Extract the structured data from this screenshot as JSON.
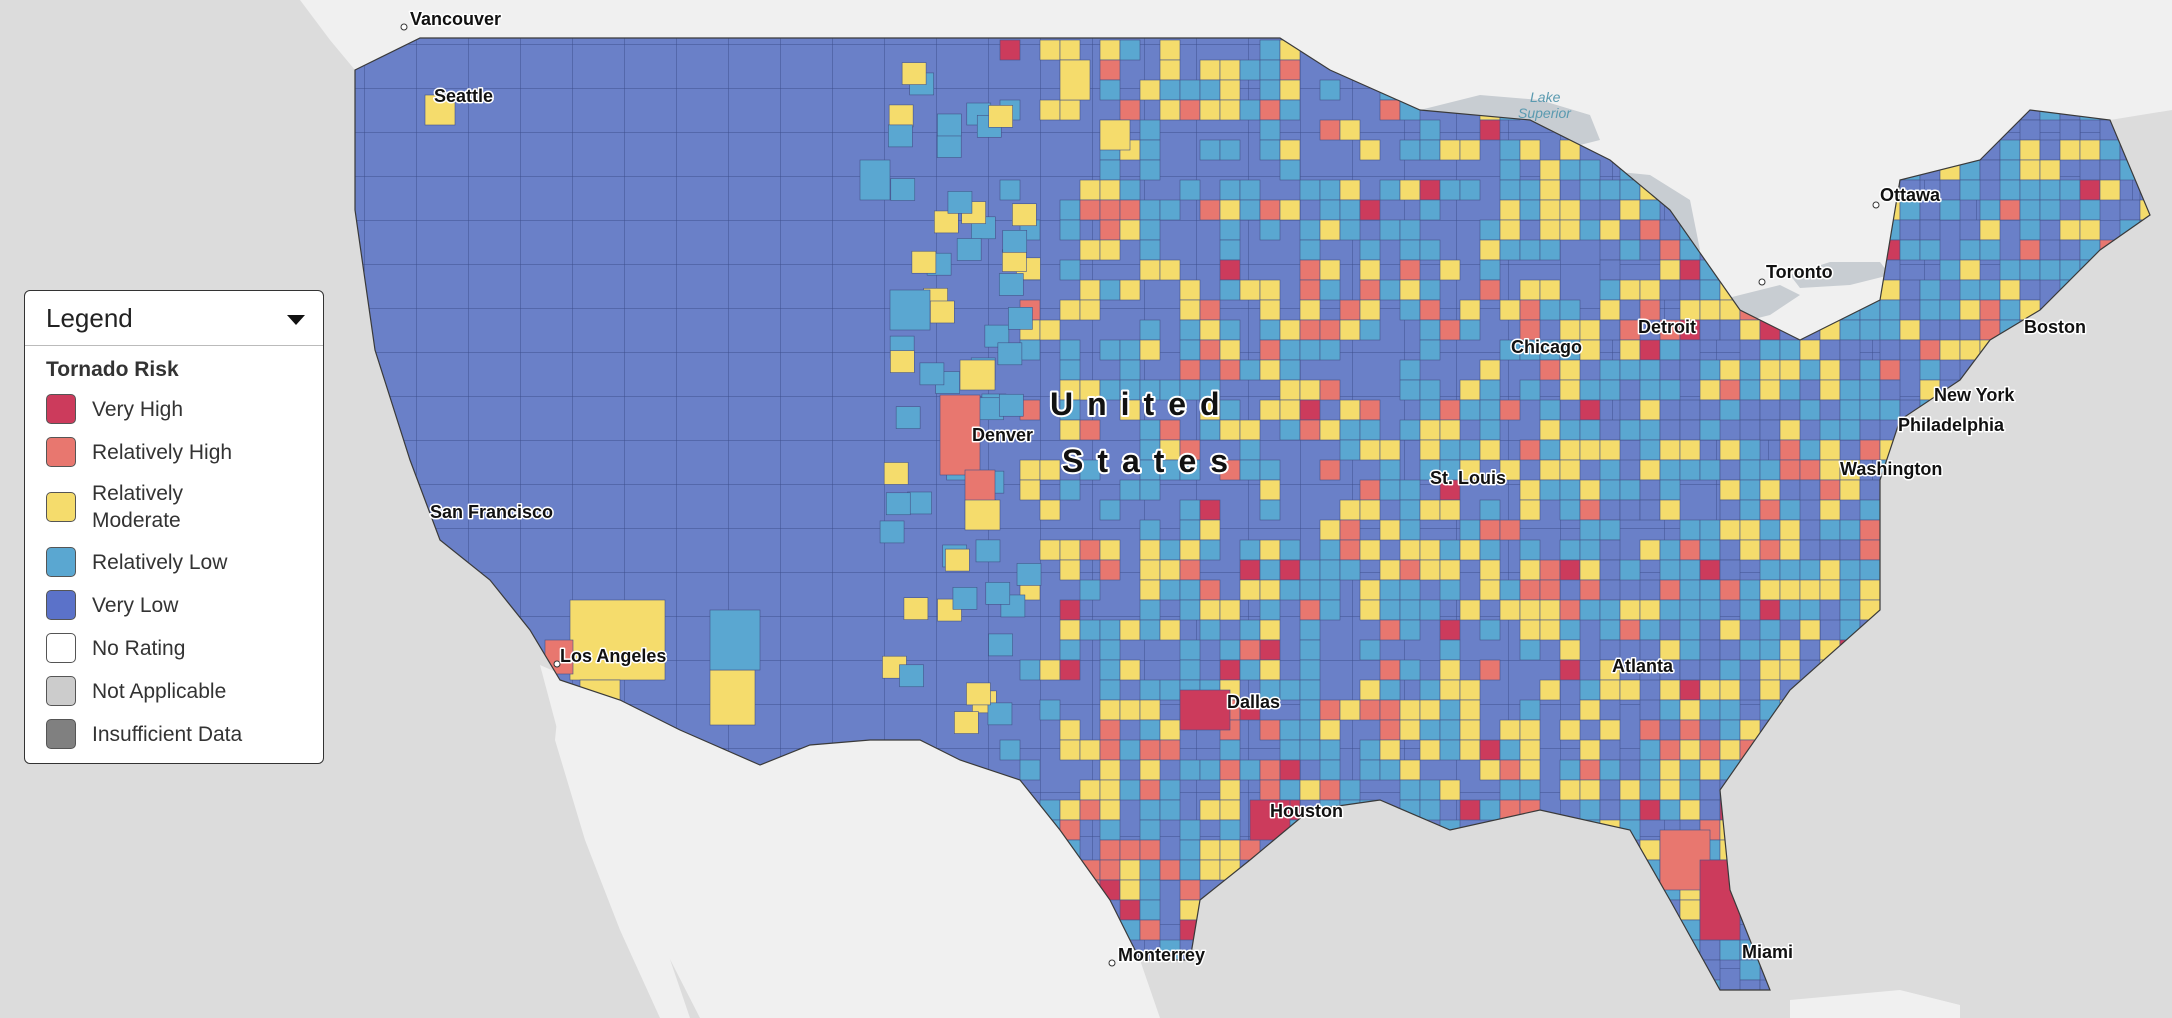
{
  "legend": {
    "header": "Legend",
    "section_title": "Tornado Risk",
    "items": [
      {
        "label": "Very High",
        "color": "#cc3b5c"
      },
      {
        "label": "Relatively High",
        "color": "#e8776f"
      },
      {
        "label": "Relatively Moderate",
        "color": "#f5dc6c"
      },
      {
        "label": "Relatively Low",
        "color": "#5aa7d1"
      },
      {
        "label": "Very Low",
        "color": "#5b72c9"
      },
      {
        "label": "No Rating",
        "color": "#ffffff"
      },
      {
        "label": "Not Applicable",
        "color": "#cccccc"
      },
      {
        "label": "Insufficient Data",
        "color": "#808080"
      }
    ]
  },
  "map": {
    "country_label_line1": "United",
    "country_label_line2": "States",
    "lake_label_line1": "Lake",
    "lake_label_line2": "Superior",
    "colors": {
      "ocean": "#dcdcdc",
      "land": "#f0f0f0",
      "lake": "#c8cdd2",
      "very_high": "#cc3b5c",
      "relatively_high": "#e8776f",
      "relatively_moderate": "#f5dc6c",
      "relatively_low": "#5aa7d1",
      "very_low": "#6a80c8"
    },
    "cities": [
      {
        "name": "Vancouver"
      },
      {
        "name": "Seattle"
      },
      {
        "name": "San Francisco"
      },
      {
        "name": "Los Angeles"
      },
      {
        "name": "Denver"
      },
      {
        "name": "Dallas"
      },
      {
        "name": "Houston"
      },
      {
        "name": "Monterrey"
      },
      {
        "name": "St. Louis"
      },
      {
        "name": "Chicago"
      },
      {
        "name": "Detroit"
      },
      {
        "name": "Atlanta"
      },
      {
        "name": "Miami"
      },
      {
        "name": "Washington"
      },
      {
        "name": "Philadelphia"
      },
      {
        "name": "New York"
      },
      {
        "name": "Boston"
      },
      {
        "name": "Toronto"
      },
      {
        "name": "Ottawa"
      }
    ]
  }
}
